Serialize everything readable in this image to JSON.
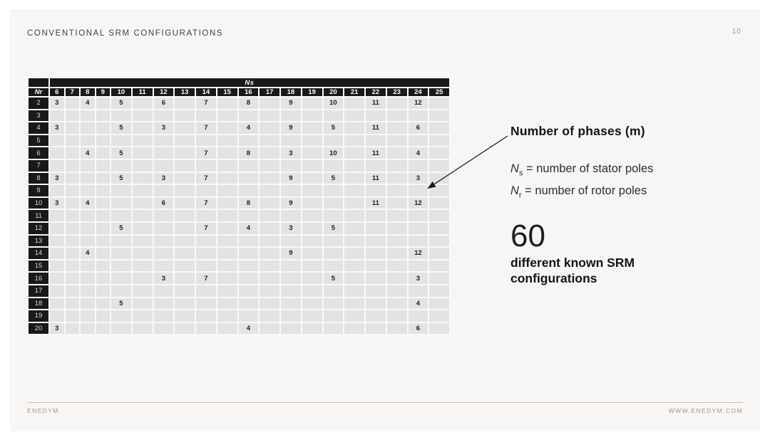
{
  "slide": {
    "title": "CONVENTIONAL SRM CONFIGURATIONS",
    "page_number": "10"
  },
  "table": {
    "ns_label": "Ns",
    "nr_label": "Nr",
    "ns_columns": [
      "6",
      "7",
      "8",
      "9",
      "10",
      "11",
      "12",
      "13",
      "14",
      "15",
      "16",
      "17",
      "18",
      "19",
      "20",
      "21",
      "22",
      "23",
      "24",
      "25"
    ],
    "rows": [
      {
        "nr": "2",
        "values": {
          "6": "3",
          "8": "4",
          "10": "5",
          "12": "6",
          "14": "7",
          "16": "8",
          "18": "9",
          "20": "10",
          "22": "11",
          "24": "12"
        }
      },
      {
        "nr": "3",
        "values": {}
      },
      {
        "nr": "4",
        "values": {
          "6": "3",
          "10": "5",
          "12": "3",
          "14": "7",
          "16": "4",
          "18": "9",
          "20": "5",
          "22": "11",
          "24": "6"
        }
      },
      {
        "nr": "5",
        "values": {}
      },
      {
        "nr": "6",
        "values": {
          "8": "4",
          "10": "5",
          "14": "7",
          "16": "8",
          "18": "3",
          "20": "10",
          "22": "11",
          "24": "4"
        }
      },
      {
        "nr": "7",
        "values": {}
      },
      {
        "nr": "8",
        "values": {
          "6": "3",
          "10": "5",
          "12": "3",
          "14": "7",
          "18": "9",
          "20": "5",
          "22": "11",
          "24": "3"
        }
      },
      {
        "nr": "9",
        "values": {}
      },
      {
        "nr": "10",
        "values": {
          "6": "3",
          "8": "4",
          "12": "6",
          "14": "7",
          "16": "8",
          "18": "9",
          "22": "11",
          "24": "12"
        }
      },
      {
        "nr": "11",
        "values": {}
      },
      {
        "nr": "12",
        "values": {
          "10": "5",
          "14": "7",
          "16": "4",
          "18": "3",
          "20": "5"
        }
      },
      {
        "nr": "13",
        "values": {}
      },
      {
        "nr": "14",
        "values": {
          "8": "4",
          "18": "9",
          "24": "12"
        }
      },
      {
        "nr": "15",
        "values": {}
      },
      {
        "nr": "16",
        "values": {
          "12": "3",
          "14": "7",
          "20": "5",
          "24": "3"
        }
      },
      {
        "nr": "17",
        "values": {}
      },
      {
        "nr": "18",
        "values": {
          "10": "5",
          "24": "4"
        }
      },
      {
        "nr": "19",
        "values": {}
      },
      {
        "nr": "20",
        "values": {
          "6": "3",
          "16": "4",
          "24": "6"
        }
      }
    ]
  },
  "annotation": {
    "arrow_label": "Number of phases (m)",
    "legend": [
      {
        "symbol": "N",
        "sub": "s",
        "text": " = number of stator poles"
      },
      {
        "symbol": "N",
        "sub": "r",
        "text": " = number of rotor poles"
      }
    ],
    "count_value": "60",
    "count_caption": "different known SRM configurations"
  },
  "footer": {
    "left": "ENEDYM",
    "right": "WWW.ENEDYM.COM"
  },
  "colors": {
    "accent_tan": "#a8907f",
    "footer_rule": "#cfbeb0",
    "header_black": "#191919",
    "cell_gray": "#e4e3e1",
    "slide_bg": "#f7f6f4"
  }
}
